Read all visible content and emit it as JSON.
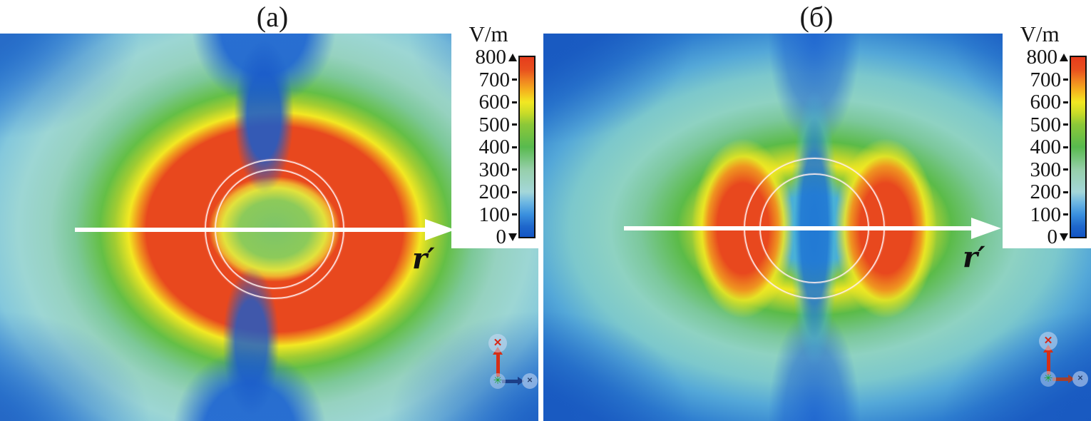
{
  "figure": {
    "kind": "simulated electric-field magnitude maps around a coated sphere",
    "background": "#ffffff"
  },
  "panels": [
    {
      "title": "(a)",
      "r_label": "r′"
    },
    {
      "title": "(б)",
      "r_label": "r′"
    }
  ],
  "colorbar": {
    "unit": "V/m",
    "ticks": [
      "800",
      "700",
      "600",
      "500",
      "400",
      "300",
      "200",
      "100",
      "0"
    ]
  },
  "chart_data": [
    {
      "type": "heatmap",
      "title": "(a)",
      "units": "V/m",
      "colorbar_range": [
        0,
        800
      ],
      "colorbar_ticks": [
        800,
        700,
        600,
        500,
        400,
        300,
        200,
        100,
        0
      ],
      "colormap": "rainbow",
      "colormap_stops": [
        {
          "value": 0,
          "color": "#1254c4"
        },
        {
          "value": 100,
          "color": "#3a90de"
        },
        {
          "value": 200,
          "color": "#a4d7d9"
        },
        {
          "value": 300,
          "color": "#96cfaa"
        },
        {
          "value": 400,
          "color": "#58ba4e"
        },
        {
          "value": 500,
          "color": "#8cc838"
        },
        {
          "value": 600,
          "color": "#f2e822"
        },
        {
          "value": 700,
          "color": "#f08020"
        },
        {
          "value": 800,
          "color": "#e63c1c"
        }
      ],
      "annotations": [
        "r′ arrow along horizontal axis through sphere center"
      ],
      "overlays": [
        "white horizontal arrow",
        "two concentric circle outlines (core and shell)",
        "coordinate-triad icon"
      ],
      "field_pattern": {
        "description": "dipole-like scattered field; strong field annulus surrounds the sphere",
        "sphere_interior": "≈400-500 V/m green core with ≈600 V/m yellow rim",
        "high_field_region": "red annulus ≥700-800 V/m around sphere, widest to the left and right",
        "nulls": "dark-blue ≤100 V/m funnels along the vertical axis above and below the sphere",
        "far_field": "≈200-300 V/m teal mid-field fading to ≈100 V/m blue at corners"
      }
    },
    {
      "type": "heatmap",
      "title": "(б)",
      "units": "V/m",
      "colorbar_range": [
        0,
        800
      ],
      "colorbar_ticks": [
        800,
        700,
        600,
        500,
        400,
        300,
        200,
        100,
        0
      ],
      "colormap": "rainbow",
      "colormap_stops": [
        {
          "value": 0,
          "color": "#1254c4"
        },
        {
          "value": 100,
          "color": "#3a90de"
        },
        {
          "value": 200,
          "color": "#a4d7d9"
        },
        {
          "value": 300,
          "color": "#96cfaa"
        },
        {
          "value": 400,
          "color": "#58ba4e"
        },
        {
          "value": 500,
          "color": "#8cc838"
        },
        {
          "value": 600,
          "color": "#f2e822"
        },
        {
          "value": 700,
          "color": "#f08020"
        },
        {
          "value": 800,
          "color": "#e63c1c"
        }
      ],
      "annotations": [
        "r′ arrow along horizontal axis through sphere center"
      ],
      "overlays": [
        "white horizontal arrow",
        "two concentric circle outlines (core and shell)",
        "coordinate-triad icon"
      ],
      "field_pattern": {
        "description": "scattered field with a low-field channel through the sphere",
        "sphere_interior": "≈0-100 V/m dark-blue vertical null band through the center",
        "high_field_region": "two red lobes ≥700-800 V/m immediately left and right of the sphere",
        "nulls": "vertical blue band continues above and below the sphere",
        "far_field": "≈200-300 V/m teal region fading to ≤100 V/m dark blue at panel edges"
      }
    }
  ]
}
